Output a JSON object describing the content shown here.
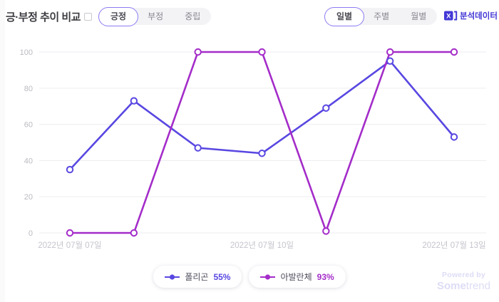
{
  "header": {
    "title": "긍·부정 추이 비교",
    "sentiment_tabs": [
      {
        "label": "긍정",
        "selected": true
      },
      {
        "label": "부정",
        "selected": false
      },
      {
        "label": "중립",
        "selected": false
      }
    ],
    "period_tabs": [
      {
        "label": "일별",
        "selected": true
      },
      {
        "label": "주별",
        "selected": false
      },
      {
        "label": "월별",
        "selected": false
      }
    ],
    "export_label": "분석데이터"
  },
  "chart_data": {
    "type": "line",
    "num_points": 7,
    "x_tick_labels": [
      {
        "index": 0,
        "label": "2022년 07월 07일"
      },
      {
        "index": 3,
        "label": "2022년 07월 10일"
      },
      {
        "index": 6,
        "label": "2022년 07월 13일"
      }
    ],
    "y_ticks": [
      0,
      20,
      40,
      60,
      80,
      100
    ],
    "ylim": [
      0,
      100
    ],
    "grid": "horizontal",
    "legend_position": "bottom-center",
    "series": [
      {
        "name": "폴리곤",
        "legend_value": "55%",
        "color": "#5847e1",
        "values": [
          35,
          73,
          47,
          44,
          69,
          95,
          53
        ]
      },
      {
        "name": "아발란체",
        "legend_value": "93%",
        "color": "#a42cc9",
        "values": [
          0,
          0,
          100,
          100,
          1,
          100,
          100
        ]
      }
    ]
  },
  "legend": [
    {
      "name": "폴리곤",
      "value": "55%",
      "color": "#5847e1"
    },
    {
      "name": "아발란체",
      "value": "93%",
      "color": "#a42cc9"
    }
  ],
  "footer": {
    "powered_by": "Powered by",
    "brand_strong": "Some",
    "brand_light": "trend"
  },
  "colors": {
    "accent_indigo": "#4338d6",
    "tab_selected_border": "#8b7bf2",
    "gridline": "#ededf0",
    "axis_text": "#babac2",
    "x_label_text": "#c4c4cd"
  }
}
